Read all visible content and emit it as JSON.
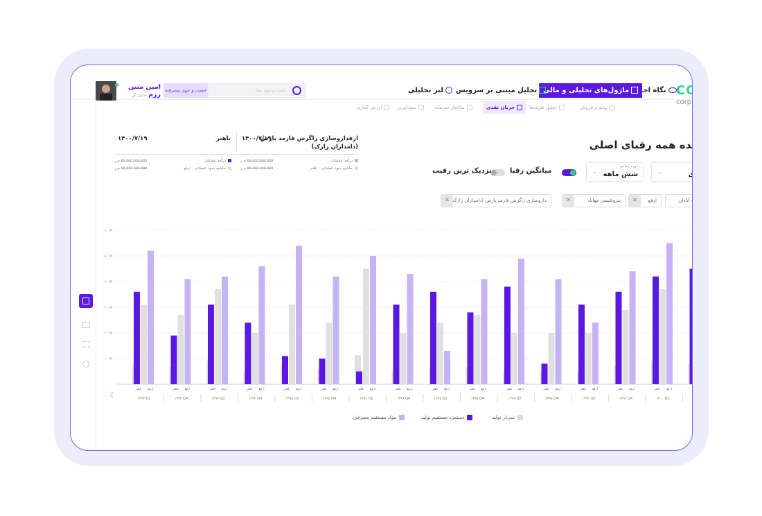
{
  "user": {
    "name": "امین متین رزم",
    "role": "تحلیل گر"
  },
  "search": {
    "advanced_label": "جست و جوی پیشرفته",
    "placeholder": "جست و جوی نماد"
  },
  "nav": {
    "items": [
      {
        "label": "نگاه اجمالی"
      },
      {
        "label": "ماژول‌های تحلیلی و مالی"
      },
      {
        "label": "تحلیل مبتنی بر سرویس"
      },
      {
        "label": "لنز تحلیلی"
      }
    ],
    "logo": "CO",
    "logo_sub": "corp"
  },
  "subnav": {
    "items": [
      {
        "label": "تولید و فروش"
      },
      {
        "label": "تحلیل هزینه‌ها"
      },
      {
        "label": "جریان نقدی"
      },
      {
        "label": "ساختار سرمایه"
      },
      {
        "label": "سودآوری"
      },
      {
        "label": "ارزش گذاری"
      }
    ]
  },
  "page": {
    "title": "شده همه رقبای اصلی"
  },
  "filters": {
    "period_caption": "دوره زمانی",
    "period_value": "شش ماهه",
    "other_value": "ای",
    "toggle_avg": "میانگین رقبا",
    "toggle_nearest": "نزدیک ترین رقیب"
  },
  "chips": [
    {
      "label": "داروسازی زاگرس فارمد پارس (دامداران زارک)"
    },
    {
      "label": "پتروشیمی مهاباد"
    },
    {
      "label": "ارفع"
    },
    {
      "label": "فت آبادان"
    }
  ],
  "info": {
    "company": "ارفداروسازی زاگرس فارمد پارس",
    "company_sub": "(دامداران زارک)",
    "date_left": "۱۴۰۰/۷/۱۹",
    "date_mid": "۱۴۰۰/۷/۱۹",
    "name_mid": "باهنر",
    "rows": [
      {
        "label": "درآمد عملیاتی",
        "value": "۵۵،۵۵۵،۵۵۵،۵۵۵ م.ر"
      },
      {
        "label": "حاشیه سود عملیاتی - باهنر",
        "value": "۵۵،۵۵۵،۵۵۵،۵۵۵ م.ر"
      },
      {
        "label": "درآمد عملیاتی",
        "value": "۵۵،۵۵۵،۵۵۵،۵۵۵ م.ر"
      },
      {
        "label": "حاشیه سود عملیاتی - ارفع",
        "value": "۵۵،۵۵۵،۵۵۵،۵۵۵ م.ر"
      }
    ]
  },
  "colors": {
    "primary": "#5a18e0",
    "light": "#c5b3f4",
    "gray": "#e0e0e0",
    "accent_green": "#2ed38a"
  },
  "chart_data": {
    "type": "bar",
    "y_ticks": [
      "۰",
      "۱۰ M",
      "۲۰ M",
      "۳۰ M",
      "۴۰ M",
      "۵۰ M",
      "۶۰ M"
    ],
    "ylim": [
      0,
      60
    ],
    "y_unit": "ریال",
    "bar_labels": [
      "ارفع",
      "باهنر"
    ],
    "categories": [
      "۱۳۹۳ Q2",
      "۱۳۹۳ Q4",
      "۱۳۹۴ Q2",
      "۱۳۹۴ Q4",
      "۱۳۹۵ Q2",
      "۱۳۹۵ Q4",
      "۱۳۹۶ Q2",
      "۱۳۹۶ Q4",
      "۱۳۹۷ Q2",
      "۱۳۹۷ Q4",
      "۱۳۹۸ Q2",
      "۱۳۹۸ Q4",
      "۱۳۹۹ Q2",
      "۱۳۹۹ Q4",
      "۱۴۰۰ Q2",
      "۱۴۰۰ Q4"
    ],
    "series": [
      {
        "name": "مواد مستقیم مصرفی",
        "color": "#c5b3f4",
        "values": [
          52,
          41,
          42,
          46,
          54,
          42,
          50,
          43,
          13,
          41,
          49,
          41,
          24,
          44,
          55,
          45
        ]
      },
      {
        "name": "دستمزد مستقیم تولید",
        "color": "#5a18e0",
        "values": [
          36,
          19,
          31,
          24,
          11,
          10,
          5,
          31,
          36,
          28,
          38,
          8,
          31,
          36,
          42,
          45
        ]
      },
      {
        "name": "سربار تولید",
        "color": "#e0e0e0",
        "values": [
          31,
          27,
          37,
          20,
          31,
          24,
          45,
          20,
          24,
          27,
          20,
          20,
          20,
          29,
          37,
          31
        ]
      }
    ],
    "legend": "bottom"
  }
}
